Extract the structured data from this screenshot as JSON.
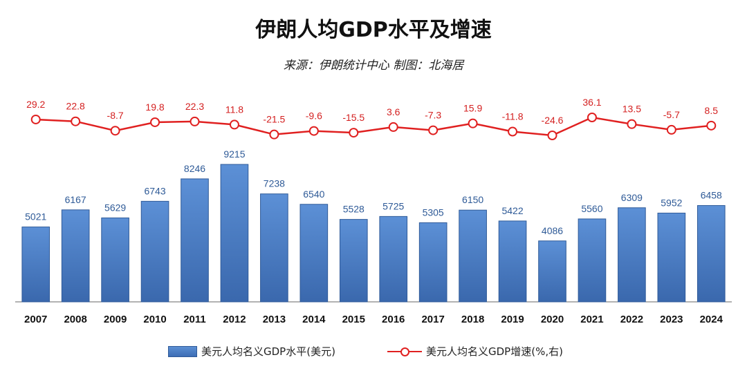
{
  "title": "伊朗人均GDP水平及增速",
  "subtitle": "来源：伊朗统计中心  制图：北海居",
  "colors": {
    "bar": "#4a7cc4",
    "bar_edge": "#2f5a98",
    "line": "#e02020",
    "bar_label": "#2e5a97",
    "line_label": "#d42020"
  },
  "chart_data": {
    "type": "bar+line",
    "categories": [
      "2007",
      "2008",
      "2009",
      "2010",
      "2011",
      "2012",
      "2013",
      "2014",
      "2015",
      "2016",
      "2017",
      "2018",
      "2019",
      "2020",
      "2021",
      "2022",
      "2023",
      "2024"
    ],
    "series": [
      {
        "name": "美元人均名义GDP水平(美元)",
        "type": "bar",
        "axis": "left",
        "values": [
          5021,
          6167,
          5629,
          6743,
          8246,
          9215,
          7238,
          6540,
          5528,
          5725,
          5305,
          6150,
          5422,
          4086,
          5560,
          6309,
          5952,
          6458
        ]
      },
      {
        "name": "美元人均名义GDP增速(%,右)",
        "type": "line",
        "axis": "right",
        "values": [
          29.2,
          22.8,
          -8.7,
          19.8,
          22.3,
          11.8,
          -21.5,
          -9.6,
          -15.5,
          3.6,
          -7.3,
          15.9,
          -11.8,
          -24.6,
          36.1,
          13.5,
          -5.7,
          8.5
        ]
      }
    ],
    "legend_position": "bottom",
    "grid": false
  }
}
